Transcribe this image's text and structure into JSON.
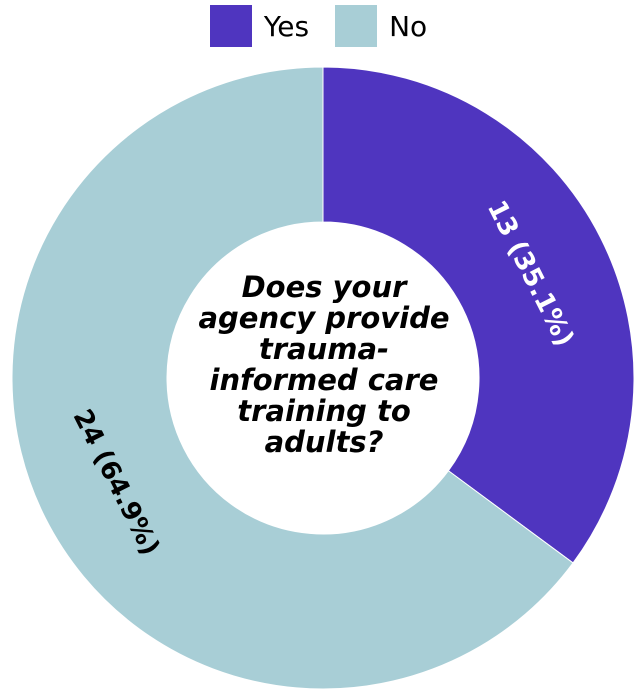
{
  "chart_data": {
    "type": "pie",
    "title": "Does your agency provide trauma-informed care training to adults?",
    "legend_position": "top",
    "donut": true,
    "slices": [
      {
        "name": "Yes",
        "value": 13,
        "percent": 35.1,
        "label": "13 (35.1%)",
        "color": "#4f35bf",
        "label_color": "#ffffff"
      },
      {
        "name": "No",
        "value": 24,
        "percent": 64.9,
        "label": "24 (64.9%)",
        "color": "#a8ced6",
        "label_color": "#000000"
      }
    ]
  }
}
